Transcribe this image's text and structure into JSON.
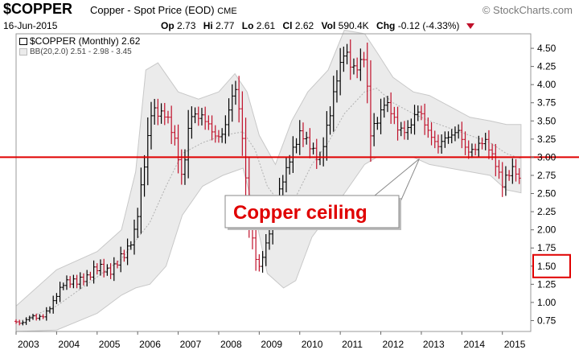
{
  "header": {
    "symbol": "$COPPER",
    "description": "Copper - Spot Price (EOD)",
    "exchange": "CME",
    "brand": "© StockCharts.com",
    "date": "16-Jun-2015",
    "op_label": "Op",
    "op": "2.73",
    "hi_label": "Hi",
    "hi": "2.77",
    "lo_label": "Lo",
    "lo": "2.61",
    "cl_label": "Cl",
    "cl": "2.62",
    "vol_label": "Vol",
    "vol": "590.4K",
    "chg_label": "Chg",
    "chg": "-0.12 (-4.33%)"
  },
  "legend": {
    "price": "$COPPER (Monthly) 2.62",
    "bb": "BB(20,2.0) 2.51 - 2.98 - 3.45"
  },
  "annotation": {
    "label": "Copper ceiling",
    "level": 3.0,
    "highlighted_tick": "1.50"
  },
  "colors": {
    "up": "#000000",
    "down": "#c0102a",
    "band_fill": "#ebebeb",
    "ceiling_line": "#e00000",
    "annotation_text": "#e00000"
  },
  "chart_data": {
    "type": "ohlc-bar",
    "ylim": [
      0.6,
      4.7
    ],
    "xlim": [
      2003.0,
      2015.7
    ],
    "y_ticks": [
      "0.75",
      "1.00",
      "1.25",
      "1.50",
      "1.75",
      "2.00",
      "2.25",
      "2.50",
      "2.75",
      "3.00",
      "3.25",
      "3.50",
      "3.75",
      "4.00",
      "4.25",
      "4.50"
    ],
    "x_ticks": [
      "2003",
      "2004",
      "2005",
      "2006",
      "2007",
      "2008",
      "2009",
      "2010",
      "2011",
      "2012",
      "2013",
      "2014",
      "2015"
    ],
    "series": [
      {
        "name": "$COPPER",
        "monthly_close": [
          [
            2003.0,
            0.74
          ],
          [
            2003.5,
            0.78
          ],
          [
            2003.9,
            0.95
          ],
          [
            2004.2,
            1.33
          ],
          [
            2004.5,
            1.25
          ],
          [
            2004.9,
            1.45
          ],
          [
            2005.3,
            1.45
          ],
          [
            2005.7,
            1.65
          ],
          [
            2005.95,
            2.05
          ],
          [
            2006.2,
            3.0
          ],
          [
            2006.35,
            3.7
          ],
          [
            2006.7,
            3.55
          ],
          [
            2006.95,
            3.2
          ],
          [
            2007.1,
            2.7
          ],
          [
            2007.3,
            3.55
          ],
          [
            2007.6,
            3.6
          ],
          [
            2007.9,
            3.25
          ],
          [
            2008.1,
            3.35
          ],
          [
            2008.4,
            3.95
          ],
          [
            2008.55,
            3.5
          ],
          [
            2008.75,
            2.2
          ],
          [
            2008.9,
            1.6
          ],
          [
            2009.0,
            1.45
          ],
          [
            2009.2,
            1.9
          ],
          [
            2009.5,
            2.5
          ],
          [
            2009.8,
            3.1
          ],
          [
            2010.0,
            3.3
          ],
          [
            2010.3,
            3.15
          ],
          [
            2010.5,
            2.95
          ],
          [
            2010.7,
            3.45
          ],
          [
            2010.9,
            4.1
          ],
          [
            2011.1,
            4.45
          ],
          [
            2011.3,
            4.2
          ],
          [
            2011.6,
            4.4
          ],
          [
            2011.75,
            3.3
          ],
          [
            2011.9,
            3.5
          ],
          [
            2012.1,
            3.8
          ],
          [
            2012.4,
            3.4
          ],
          [
            2012.7,
            3.4
          ],
          [
            2012.95,
            3.65
          ],
          [
            2013.2,
            3.35
          ],
          [
            2013.4,
            3.1
          ],
          [
            2013.6,
            3.3
          ],
          [
            2013.9,
            3.35
          ],
          [
            2014.1,
            3.1
          ],
          [
            2014.4,
            3.15
          ],
          [
            2014.6,
            3.2
          ],
          [
            2014.8,
            3.0
          ],
          [
            2015.0,
            2.6
          ],
          [
            2015.15,
            2.75
          ],
          [
            2015.3,
            2.9
          ],
          [
            2015.46,
            2.62
          ]
        ]
      },
      {
        "name": "BB upper",
        "points": [
          [
            2003.0,
            0.95
          ],
          [
            2004.0,
            1.45
          ],
          [
            2005.0,
            1.7
          ],
          [
            2005.6,
            2.0
          ],
          [
            2005.95,
            2.8
          ],
          [
            2006.2,
            4.2
          ],
          [
            2006.5,
            4.3
          ],
          [
            2007.0,
            3.9
          ],
          [
            2007.5,
            3.8
          ],
          [
            2008.0,
            3.9
          ],
          [
            2008.4,
            4.15
          ],
          [
            2008.7,
            3.9
          ],
          [
            2009.0,
            3.3
          ],
          [
            2009.4,
            2.9
          ],
          [
            2009.8,
            3.5
          ],
          [
            2010.2,
            3.9
          ],
          [
            2010.7,
            4.2
          ],
          [
            2011.1,
            4.75
          ],
          [
            2011.6,
            4.7
          ],
          [
            2011.9,
            4.45
          ],
          [
            2012.3,
            4.1
          ],
          [
            2012.8,
            3.9
          ],
          [
            2013.2,
            3.85
          ],
          [
            2013.7,
            3.7
          ],
          [
            2014.2,
            3.55
          ],
          [
            2014.7,
            3.5
          ],
          [
            2015.1,
            3.45
          ],
          [
            2015.46,
            3.45
          ]
        ]
      },
      {
        "name": "BB middle",
        "points": [
          [
            2003.0,
            0.72
          ],
          [
            2004.0,
            0.95
          ],
          [
            2005.0,
            1.35
          ],
          [
            2005.6,
            1.6
          ],
          [
            2005.95,
            1.85
          ],
          [
            2006.3,
            2.1
          ],
          [
            2006.7,
            2.6
          ],
          [
            2007.1,
            3.05
          ],
          [
            2007.6,
            3.2
          ],
          [
            2008.1,
            3.3
          ],
          [
            2008.6,
            3.35
          ],
          [
            2008.9,
            3.1
          ],
          [
            2009.2,
            2.6
          ],
          [
            2009.6,
            2.3
          ],
          [
            2009.9,
            2.45
          ],
          [
            2010.3,
            2.9
          ],
          [
            2010.7,
            3.2
          ],
          [
            2011.1,
            3.6
          ],
          [
            2011.6,
            3.9
          ],
          [
            2011.9,
            3.95
          ],
          [
            2012.3,
            3.75
          ],
          [
            2012.8,
            3.6
          ],
          [
            2013.2,
            3.5
          ],
          [
            2013.7,
            3.4
          ],
          [
            2014.2,
            3.3
          ],
          [
            2014.7,
            3.2
          ],
          [
            2015.1,
            3.05
          ],
          [
            2015.46,
            2.98
          ]
        ]
      },
      {
        "name": "BB lower",
        "points": [
          [
            2003.0,
            0.6
          ],
          [
            2004.0,
            0.62
          ],
          [
            2005.0,
            0.85
          ],
          [
            2005.6,
            1.1
          ],
          [
            2005.95,
            1.2
          ],
          [
            2006.3,
            1.25
          ],
          [
            2006.7,
            1.5
          ],
          [
            2007.1,
            2.2
          ],
          [
            2007.6,
            2.6
          ],
          [
            2008.1,
            2.75
          ],
          [
            2008.6,
            2.85
          ],
          [
            2008.9,
            2.2
          ],
          [
            2009.2,
            1.4
          ],
          [
            2009.6,
            1.2
          ],
          [
            2009.9,
            1.3
          ],
          [
            2010.3,
            1.9
          ],
          [
            2010.7,
            2.2
          ],
          [
            2011.1,
            2.5
          ],
          [
            2011.6,
            2.9
          ],
          [
            2011.9,
            3.0
          ],
          [
            2012.3,
            3.0
          ],
          [
            2012.8,
            3.0
          ],
          [
            2013.2,
            2.9
          ],
          [
            2013.7,
            2.85
          ],
          [
            2014.2,
            2.8
          ],
          [
            2014.7,
            2.75
          ],
          [
            2015.1,
            2.55
          ],
          [
            2015.46,
            2.51
          ]
        ]
      }
    ]
  }
}
